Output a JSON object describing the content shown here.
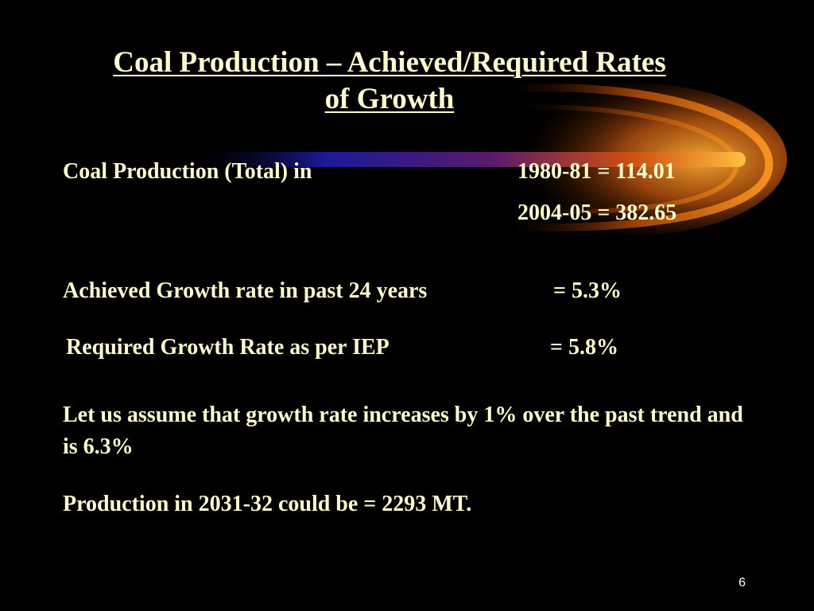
{
  "slide": {
    "title_line1": "Coal Production – Achieved/Required Rates",
    "title_line2": "of Growth",
    "production_label": "Coal Production (Total) in",
    "production_values": [
      "1980-81 = 114.01",
      "2004-05 = 382.65"
    ],
    "achieved_label": "Achieved Growth rate in past 24 years",
    "achieved_value": "= 5.3%",
    "required_label": "Required Growth Rate as per IEP",
    "required_value": "= 5.8%",
    "assumption_text": "Let us assume that growth rate increases by 1% over the past trend and is 6.3%",
    "projection_text": "Production in 2031-32 could be = 2293 MT.",
    "page_number": "6"
  },
  "colors": {
    "background": "#000000",
    "text": "#fefccf",
    "accent_orange": "#ff8a00",
    "accent_blue": "#1a1a9a"
  }
}
